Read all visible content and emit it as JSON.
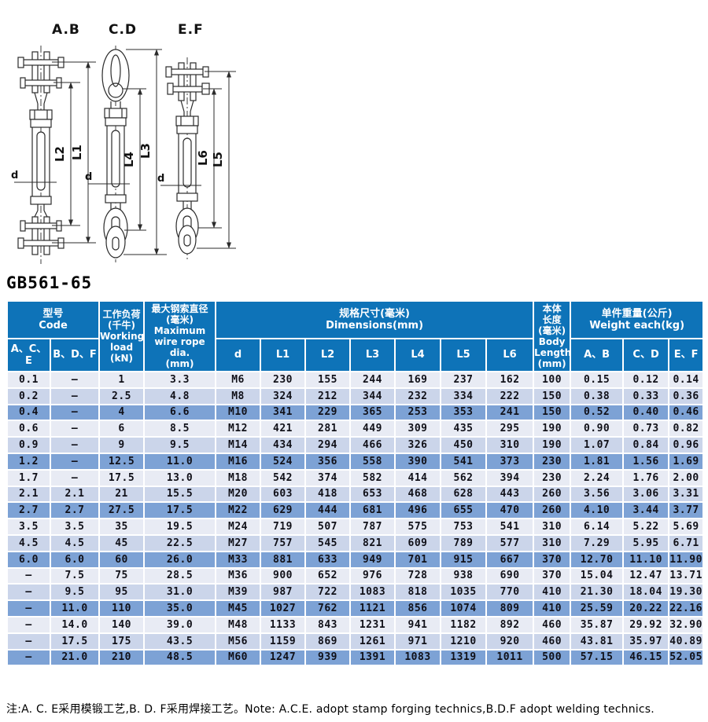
{
  "title": "GB561-65",
  "drawings": {
    "variants": [
      "A.B",
      "C.D",
      "E.F"
    ],
    "dims": [
      "L1",
      "L2",
      "L3",
      "L4",
      "L5",
      "L6"
    ],
    "d_label": "d"
  },
  "table": {
    "header": {
      "code": "型号\nCode",
      "col_ace": "A、C、E",
      "col_bdf": "B、D、F",
      "working": "工作负荷\n(千牛)\nWorking\nload\n(kN)",
      "dia": "最大钢索直径\n(毫米)\nMaximum\nwire rope dia.\n(mm)",
      "dims": "规格尺寸(毫米)\nDimensions(mm)",
      "dim_cols": [
        "d",
        "L1",
        "L2",
        "L3",
        "L4",
        "L5",
        "L6"
      ],
      "body": "本体\n长度\n(毫米)\nBody\nLength\n(mm)",
      "weight": "单件重量(公斤)\nWeight each(kg)",
      "weight_cols": [
        "A、B",
        "C、D",
        "E、F"
      ]
    },
    "rows": [
      [
        "0.1",
        "–",
        "1",
        "3.3",
        "M6",
        "230",
        "155",
        "244",
        "169",
        "237",
        "162",
        "100",
        "0.15",
        "0.12",
        "0.14"
      ],
      [
        "0.2",
        "–",
        "2.5",
        "4.8",
        "M8",
        "324",
        "212",
        "344",
        "232",
        "334",
        "222",
        "150",
        "0.38",
        "0.33",
        "0.36"
      ],
      [
        "0.4",
        "–",
        "4",
        "6.6",
        "M10",
        "341",
        "229",
        "365",
        "253",
        "353",
        "241",
        "150",
        "0.52",
        "0.40",
        "0.46"
      ],
      [
        "0.6",
        "–",
        "6",
        "8.5",
        "M12",
        "421",
        "281",
        "449",
        "309",
        "435",
        "295",
        "190",
        "0.90",
        "0.73",
        "0.82"
      ],
      [
        "0.9",
        "–",
        "9",
        "9.5",
        "M14",
        "434",
        "294",
        "466",
        "326",
        "450",
        "310",
        "190",
        "1.07",
        "0.84",
        "0.96"
      ],
      [
        "1.2",
        "–",
        "12.5",
        "11.0",
        "M16",
        "524",
        "356",
        "558",
        "390",
        "541",
        "373",
        "230",
        "1.81",
        "1.56",
        "1.69"
      ],
      [
        "1.7",
        "–",
        "17.5",
        "13.0",
        "M18",
        "542",
        "374",
        "582",
        "414",
        "562",
        "394",
        "230",
        "2.24",
        "1.76",
        "2.00"
      ],
      [
        "2.1",
        "2.1",
        "21",
        "15.5",
        "M20",
        "603",
        "418",
        "653",
        "468",
        "628",
        "443",
        "260",
        "3.56",
        "3.06",
        "3.31"
      ],
      [
        "2.7",
        "2.7",
        "27.5",
        "17.5",
        "M22",
        "629",
        "444",
        "681",
        "496",
        "655",
        "470",
        "260",
        "4.10",
        "3.44",
        "3.77"
      ],
      [
        "3.5",
        "3.5",
        "35",
        "19.5",
        "M24",
        "719",
        "507",
        "787",
        "575",
        "753",
        "541",
        "310",
        "6.14",
        "5.22",
        "5.69"
      ],
      [
        "4.5",
        "4.5",
        "45",
        "22.5",
        "M27",
        "757",
        "545",
        "821",
        "609",
        "789",
        "577",
        "310",
        "7.29",
        "5.95",
        "6.71"
      ],
      [
        "6.0",
        "6.0",
        "60",
        "26.0",
        "M33",
        "881",
        "633",
        "949",
        "701",
        "915",
        "667",
        "370",
        "12.70",
        "11.10",
        "11.90"
      ],
      [
        "–",
        "7.5",
        "75",
        "28.5",
        "M36",
        "900",
        "652",
        "976",
        "728",
        "938",
        "690",
        "370",
        "15.04",
        "12.47",
        "13.71"
      ],
      [
        "–",
        "9.5",
        "95",
        "31.0",
        "M39",
        "987",
        "722",
        "1083",
        "818",
        "1035",
        "770",
        "410",
        "21.30",
        "18.04",
        "19.30"
      ],
      [
        "–",
        "11.0",
        "110",
        "35.0",
        "M45",
        "1027",
        "762",
        "1121",
        "856",
        "1074",
        "809",
        "410",
        "25.59",
        "20.22",
        "22.16"
      ],
      [
        "–",
        "14.0",
        "140",
        "39.0",
        "M48",
        "1133",
        "843",
        "1231",
        "941",
        "1182",
        "892",
        "460",
        "35.87",
        "29.92",
        "32.90"
      ],
      [
        "–",
        "17.5",
        "175",
        "43.5",
        "M56",
        "1159",
        "869",
        "1261",
        "971",
        "1210",
        "920",
        "460",
        "43.81",
        "35.97",
        "40.89"
      ],
      [
        "–",
        "21.0",
        "210",
        "48.5",
        "M60",
        "1247",
        "939",
        "1391",
        "1083",
        "1319",
        "1011",
        "500",
        "57.15",
        "46.15",
        "52.05"
      ]
    ]
  },
  "note": "注:A. C. E采用模锻工艺,B. D. F采用焊接工艺。Note: A.C.E. adopt stamp forging technics,B.D.F adopt welding technics.",
  "colors": {
    "header_blue": "#0e73b8",
    "row_light": "#e8ebf4",
    "row_mid": "#cbd5ea",
    "row_dark": "#7da2d5",
    "grid_white": "#ffffff",
    "text_dark": "#15151f"
  }
}
